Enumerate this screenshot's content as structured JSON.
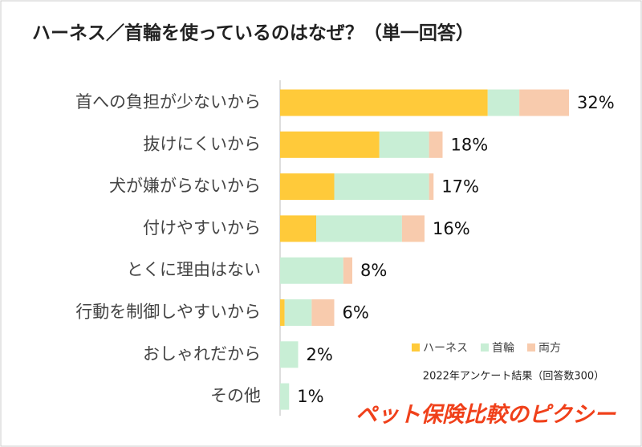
{
  "chart_data": {
    "type": "stacked-barh",
    "title": "ハーネス／首輪を使っているのはなぜ？（単一回答）",
    "categories": [
      "首への負担が少ないから",
      "抜けにくいから",
      "犬が嫌がらないから",
      "付けやすいから",
      "とくに理由はない",
      "行動を制御しやすいから",
      "おしゃれだから",
      "その他"
    ],
    "series": [
      {
        "name": "ハーネス",
        "color": "#ffca3a",
        "values": [
          23,
          11,
          6,
          4,
          0,
          0.5,
          0,
          0
        ]
      },
      {
        "name": "首輪",
        "color": "#c8eed5",
        "values": [
          3.5,
          5.5,
          10.5,
          9.5,
          7,
          3,
          2,
          1
        ]
      },
      {
        "name": "両方",
        "color": "#f8cbad",
        "values": [
          5.5,
          1.5,
          0.5,
          2.5,
          1,
          2.5,
          0,
          0
        ]
      }
    ],
    "totals": [
      32,
      18,
      17,
      16,
      8,
      6,
      2,
      1
    ],
    "total_labels": [
      "32%",
      "18%",
      "17%",
      "16%",
      "8%",
      "6%",
      "2%",
      "1%"
    ],
    "note": "2022年アンケート結果（回答数300）",
    "brand": "ペット保険比較のピクシー"
  }
}
